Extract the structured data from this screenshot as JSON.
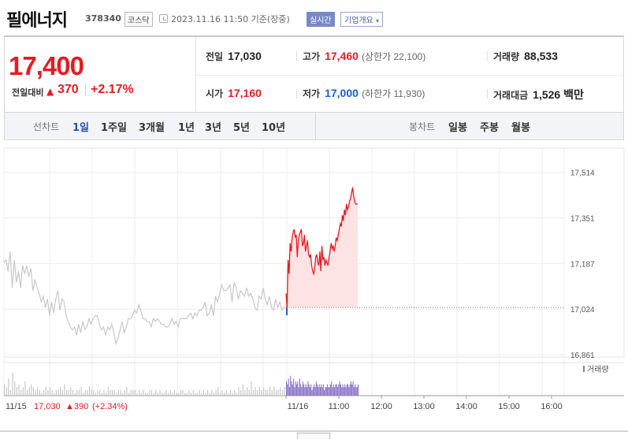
{
  "header": {
    "name": "필에너지",
    "code": "378340",
    "market": "코스닥",
    "timestamp": "2023.11.16 11:50 기준(장중)",
    "realtime_label": "실시간",
    "company_button": "기업개요",
    "company_caret": "▾"
  },
  "price": {
    "current": "17,400",
    "diff_label": "전일대비",
    "up_icon": "▲",
    "diff": "370",
    "pct": "+2.17%"
  },
  "stats": {
    "prev_label": "전일",
    "prev": "17,030",
    "high_label": "고가",
    "high": "17,460",
    "upper_limit": "(상한가 22,100)",
    "volume_label": "거래량",
    "volume": "88,533",
    "open_label": "시가",
    "open": "17,160",
    "low_label": "저가",
    "low": "17,000",
    "lower_limit": "(하한가 11,930)",
    "amount_label": "거래대금",
    "amount": "1,526 백만"
  },
  "periods": {
    "line_label": "선차트",
    "line_items": [
      "1일",
      "1주일",
      "3개월",
      "1년",
      "3년",
      "5년",
      "10년"
    ],
    "active": "1일",
    "candle_label": "봉차트",
    "candle_items": [
      "일봉",
      "주봉",
      "월봉"
    ]
  },
  "colors": {
    "up": "#e51b23",
    "down": "#1a5fcf",
    "prev_day_line": "#c8c8c8",
    "today_line": "#e51b23",
    "today_fill": "#fde3e3",
    "volume_prev": "#c8c8c8",
    "volume_today": "#8a74c9"
  },
  "chart_data": {
    "type": "line",
    "ylim": [
      16861,
      17600
    ],
    "y_ticks": [
      "17,514",
      "17,351",
      "17,187",
      "17,024",
      "16,861"
    ],
    "y_tick_values": [
      17514,
      17351,
      17187,
      17024,
      16861
    ],
    "baseline": 17030,
    "x_ticks": [
      "11/16",
      "11:00",
      "12:00",
      "13:00",
      "14:00",
      "15:00",
      "16:00"
    ],
    "prev_day_label": "11/15",
    "prev_day_close": "17,030",
    "prev_day_change": "▲390",
    "prev_day_pct": "(+2.34%)",
    "volume_legend": "거래량",
    "series": [
      {
        "name": "11/15",
        "values": [
          17190,
          17200,
          17160,
          17230,
          17100,
          17200,
          17120,
          17160,
          17100,
          17180,
          17150,
          17180,
          17140,
          17170,
          17090,
          17130,
          17100,
          17080,
          17050,
          17070,
          17030,
          17060,
          17000,
          17050,
          17010,
          17060,
          17090,
          17020,
          17060,
          17050,
          17000,
          16980,
          16960,
          16950,
          16960,
          16930,
          16970,
          16940,
          16980,
          16950,
          16960,
          16990,
          16970,
          16990,
          17000,
          17000,
          16970,
          16950,
          16960,
          16930,
          16960,
          16950,
          16970,
          16940,
          16900,
          16920,
          16950,
          16980,
          16940,
          16960,
          16990,
          16990,
          17000,
          17020,
          17010,
          17040,
          17020,
          16990,
          16990,
          16980,
          16980,
          16960,
          16990,
          16980,
          16990,
          16980,
          16970,
          16970,
          16960,
          16960,
          16970,
          16990,
          16970,
          16980,
          16960,
          16990,
          16990,
          16990,
          16990,
          17000,
          17010,
          16990,
          17010,
          17000,
          17020,
          17020,
          17030,
          17050,
          17000,
          17010,
          17040,
          17000,
          17070,
          17050,
          17080,
          17110,
          17090,
          17090,
          17100,
          17110,
          17050,
          17120,
          17100,
          17060,
          17090,
          17080,
          17070,
          17100,
          17070,
          17080,
          17060,
          17030,
          17020,
          17070,
          17060,
          17100,
          17060,
          17040,
          17070,
          17030,
          17020,
          17060,
          17030,
          17050,
          17020,
          17030,
          17030
        ]
      },
      {
        "name": "11/16",
        "values": [
          17080,
          17030,
          17200,
          17150,
          17260,
          17230,
          17280,
          17300,
          17310,
          17280,
          17290,
          17210,
          17270,
          17290,
          17300,
          17310,
          17250,
          17260,
          17290,
          17230,
          17250,
          17270,
          17220,
          17210,
          17220,
          17180,
          17160,
          17150,
          17170,
          17210,
          17220,
          17190,
          17180,
          17230,
          17160,
          17250,
          17200,
          17210,
          17180,
          17200,
          17190,
          17180,
          17210,
          17230,
          17260,
          17240,
          17250,
          17230,
          17250,
          17280,
          17270,
          17290,
          17310,
          17330,
          17320,
          17360,
          17340,
          17380,
          17360,
          17400,
          17380,
          17390,
          17410,
          17420,
          17440,
          17460,
          17430,
          17410,
          17400,
          17400,
          17400
        ]
      }
    ],
    "volume": {
      "prev_day": [
        4,
        3,
        6,
        2,
        8,
        5,
        3,
        4,
        2,
        3,
        5,
        2,
        3,
        4,
        3,
        2,
        3,
        2,
        1,
        2,
        3,
        2,
        3,
        2,
        1,
        2,
        2,
        3,
        2,
        4,
        2,
        2,
        3,
        2,
        1,
        2,
        2,
        3,
        1,
        2,
        2,
        3,
        2,
        2,
        1,
        2,
        2,
        1,
        2,
        1,
        3,
        2,
        2,
        2,
        1,
        2,
        2,
        1,
        2,
        3,
        1,
        2,
        2,
        2,
        1,
        2,
        1,
        2,
        1,
        1,
        2,
        2,
        1,
        2,
        1,
        2,
        1,
        1,
        2,
        1,
        2,
        1,
        2,
        1,
        1,
        2,
        2,
        1,
        1,
        2,
        1,
        2,
        1,
        1,
        2,
        1,
        2,
        1,
        2,
        1,
        2,
        1,
        2,
        3,
        1,
        2,
        1,
        2,
        1,
        2,
        1,
        2,
        1,
        3,
        2,
        4,
        2,
        3,
        2,
        5,
        2,
        3,
        2,
        3,
        2,
        3,
        2,
        2,
        3,
        2,
        3,
        2,
        2,
        3,
        2,
        3,
        4
      ],
      "today": [
        5,
        4,
        6,
        3,
        7,
        5,
        4,
        6,
        3,
        5,
        4,
        5,
        3,
        6,
        4,
        3,
        5,
        4,
        3,
        4,
        3,
        5,
        4,
        3,
        4,
        2,
        3,
        4,
        3,
        5,
        4,
        3,
        4,
        3,
        4,
        3,
        4,
        2,
        3,
        3,
        4,
        3,
        3,
        4,
        5,
        3,
        4,
        3,
        4,
        4,
        3,
        4,
        5,
        4,
        3,
        4,
        3,
        4,
        3,
        4,
        4,
        3,
        4,
        5,
        4,
        5,
        3,
        4,
        3,
        3,
        4
      ]
    }
  }
}
